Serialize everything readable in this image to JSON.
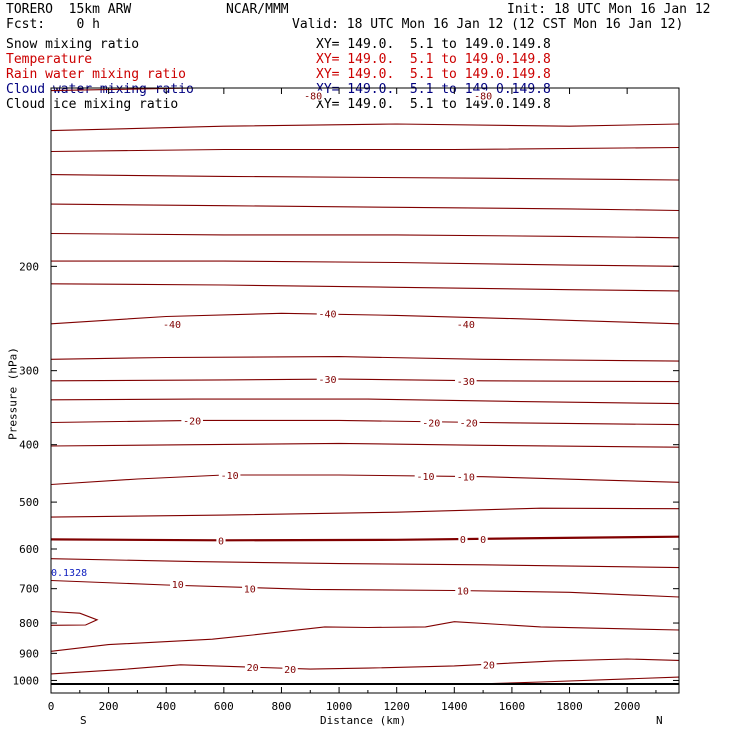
{
  "header": {
    "model": "TORERO  15km ARW",
    "center": "NCAR/MMM",
    "init": "Init: 18 UTC Mon 16 Jan 12",
    "fcst": "Fcst:    0 h",
    "valid": "Valid: 18 UTC Mon 16 Jan 12 (12 CST Mon 16 Jan 12)"
  },
  "fields": [
    {
      "name": "Snow mixing ratio",
      "xy": "XY= 149.0.  5.1 to 149.0.149.8",
      "color": "#000000"
    },
    {
      "name": "Temperature",
      "xy": "XY= 149.0.  5.1 to 149.0.149.8",
      "color": "#cc0000"
    },
    {
      "name": "Rain water mixing ratio",
      "xy": "XY= 149.0.  5.1 to 149.0.149.8",
      "color": "#cc0000"
    },
    {
      "name": "Cloud water mixing ratio",
      "xy": "XY= 149.0.  5.1 to 149.0.149.8",
      "color": "#000080"
    },
    {
      "name": "Cloud ice mixing ratio",
      "xy": "XY= 149.0.  5.1 to 149.0.149.8",
      "color": "#000000"
    }
  ],
  "chart_data": {
    "type": "line",
    "xlabel": "Distance (km)",
    "ylabel": "Pressure (hPa)",
    "xlim": [
      0,
      2180
    ],
    "ylim": [
      1050,
      100
    ],
    "x_ticks": [
      0,
      200,
      400,
      600,
      800,
      1000,
      1200,
      1400,
      1600,
      1800,
      2000
    ],
    "y_ticks": [
      200,
      300,
      400,
      500,
      600,
      700,
      800,
      900,
      1000
    ],
    "x_tick_labels": [
      "0",
      "200",
      "400",
      "600",
      "800",
      "1000",
      "1200",
      "1400",
      "1600",
      "1800",
      "2000"
    ],
    "y_tick_labels": [
      "200",
      "300",
      "400",
      "500",
      "600",
      "700",
      "800",
      "900",
      "1000"
    ],
    "left_end_label": "S",
    "right_end_label": "N",
    "cloud_water_annotation": "0.1328",
    "surface_pressure_hpa": 1014,
    "contour_color": "#800000",
    "isotherms": [
      {
        "t": -80,
        "points": [
          [
            0,
            101
          ],
          [
            500,
            100
          ],
          [
            1000,
            99
          ],
          [
            1500,
            100
          ],
          [
            2180,
            99
          ]
        ]
      },
      {
        "t": -75,
        "points": [
          [
            0,
            118
          ],
          [
            600,
            116
          ],
          [
            1200,
            115
          ],
          [
            1800,
            116
          ],
          [
            2180,
            115
          ]
        ]
      },
      {
        "t": -70,
        "points": [
          [
            0,
            128
          ],
          [
            600,
            127
          ],
          [
            1400,
            127
          ],
          [
            2180,
            126
          ]
        ]
      },
      {
        "t": -65,
        "points": [
          [
            0,
            140
          ],
          [
            600,
            141
          ],
          [
            1500,
            142
          ],
          [
            2180,
            143
          ]
        ]
      },
      {
        "t": -60,
        "points": [
          [
            0,
            157
          ],
          [
            600,
            158
          ],
          [
            1200,
            159
          ],
          [
            1800,
            160
          ],
          [
            2180,
            161
          ]
        ]
      },
      {
        "t": -55,
        "points": [
          [
            0,
            176
          ],
          [
            600,
            177
          ],
          [
            1200,
            177
          ],
          [
            1800,
            178
          ],
          [
            2180,
            179
          ]
        ]
      },
      {
        "t": -50,
        "points": [
          [
            0,
            196
          ],
          [
            600,
            196
          ],
          [
            1200,
            197
          ],
          [
            1800,
            199
          ],
          [
            2180,
            200
          ]
        ]
      },
      {
        "t": -45,
        "points": [
          [
            0,
            214
          ],
          [
            600,
            215
          ],
          [
            1200,
            217
          ],
          [
            1800,
            219
          ],
          [
            2180,
            220
          ]
        ]
      },
      {
        "t": -40,
        "points": [
          [
            0,
            250
          ],
          [
            400,
            243
          ],
          [
            800,
            240
          ],
          [
            1200,
            242
          ],
          [
            1600,
            245
          ],
          [
            2180,
            250
          ]
        ]
      },
      {
        "t": -35,
        "points": [
          [
            0,
            287
          ],
          [
            400,
            285
          ],
          [
            1000,
            284
          ],
          [
            1500,
            287
          ],
          [
            2180,
            289
          ]
        ]
      },
      {
        "t": -30,
        "points": [
          [
            0,
            312
          ],
          [
            600,
            311
          ],
          [
            1000,
            310
          ],
          [
            1500,
            312
          ],
          [
            2180,
            313
          ]
        ]
      },
      {
        "t": -25,
        "points": [
          [
            0,
            336
          ],
          [
            500,
            335
          ],
          [
            1100,
            335
          ],
          [
            1600,
            338
          ],
          [
            2180,
            341
          ]
        ]
      },
      {
        "t": -20,
        "points": [
          [
            0,
            367
          ],
          [
            500,
            364
          ],
          [
            1000,
            364
          ],
          [
            1500,
            367
          ],
          [
            2180,
            370
          ]
        ]
      },
      {
        "t": -15,
        "points": [
          [
            0,
            402
          ],
          [
            500,
            400
          ],
          [
            1000,
            398
          ],
          [
            1500,
            401
          ],
          [
            2180,
            404
          ]
        ]
      },
      {
        "t": -10,
        "points": [
          [
            0,
            467
          ],
          [
            300,
            457
          ],
          [
            600,
            450
          ],
          [
            1000,
            450
          ],
          [
            1500,
            453
          ],
          [
            2180,
            463
          ]
        ]
      },
      {
        "t": -5,
        "points": [
          [
            0,
            530
          ],
          [
            600,
            526
          ],
          [
            1200,
            520
          ],
          [
            1700,
            512
          ],
          [
            2180,
            513
          ]
        ]
      },
      {
        "t": 0,
        "bold": true,
        "points": [
          [
            0,
            578
          ],
          [
            600,
            580
          ],
          [
            1200,
            579
          ],
          [
            1700,
            575
          ],
          [
            2180,
            572
          ]
        ]
      },
      {
        "t": 5,
        "points": [
          [
            0,
            623
          ],
          [
            500,
            630
          ],
          [
            1000,
            635
          ],
          [
            1500,
            638
          ],
          [
            2180,
            645
          ]
        ]
      },
      {
        "t": 10,
        "points": [
          [
            0,
            678
          ],
          [
            400,
            690
          ],
          [
            900,
            702
          ],
          [
            1400,
            705
          ],
          [
            1800,
            710
          ],
          [
            2180,
            723
          ]
        ]
      },
      {
        "t": 15,
        "points": [
          [
            0,
            765
          ],
          [
            100,
            770
          ],
          [
            160,
            790
          ],
          [
            120,
            806
          ],
          [
            0,
            807
          ]
        ]
      },
      {
        "t": 15,
        "points": [
          [
            0,
            893
          ],
          [
            200,
            870
          ],
          [
            560,
            852
          ],
          [
            700,
            838
          ],
          [
            950,
            812
          ],
          [
            1100,
            814
          ],
          [
            1300,
            812
          ],
          [
            1400,
            796
          ],
          [
            1700,
            812
          ],
          [
            2180,
            822
          ]
        ]
      },
      {
        "t": 20,
        "points": [
          [
            0,
            975
          ],
          [
            250,
            958
          ],
          [
            450,
            941
          ],
          [
            700,
            950
          ],
          [
            900,
            957
          ],
          [
            1100,
            953
          ],
          [
            1400,
            945
          ],
          [
            1750,
            927
          ],
          [
            2000,
            920
          ],
          [
            2180,
            925
          ]
        ]
      },
      {
        "t": 25,
        "points": [
          [
            1500,
            1013
          ],
          [
            1700,
            1006
          ],
          [
            2000,
            994
          ],
          [
            2180,
            987
          ]
        ]
      }
    ],
    "contour_labels": [
      {
        "text": "-80",
        "x": 910,
        "p": 103
      },
      {
        "text": "-80",
        "x": 1500,
        "p": 103
      },
      {
        "text": "-40",
        "x": 420,
        "p": 250
      },
      {
        "text": "-40",
        "x": 960,
        "p": 240
      },
      {
        "text": "-40",
        "x": 1440,
        "p": 250
      },
      {
        "text": "-30",
        "x": 960,
        "p": 310
      },
      {
        "text": "-30",
        "x": 1440,
        "p": 312
      },
      {
        "text": "-20",
        "x": 490,
        "p": 364
      },
      {
        "text": "-20",
        "x": 1320,
        "p": 367
      },
      {
        "text": "-20",
        "x": 1450,
        "p": 367
      },
      {
        "text": "-10",
        "x": 620,
        "p": 450
      },
      {
        "text": "-10",
        "x": 1300,
        "p": 452
      },
      {
        "text": "-10",
        "x": 1440,
        "p": 453
      },
      {
        "text": "0",
        "x": 590,
        "p": 580
      },
      {
        "text": "0",
        "x": 1430,
        "p": 577
      },
      {
        "text": "0",
        "x": 1500,
        "p": 577
      },
      {
        "text": "10",
        "x": 440,
        "p": 687
      },
      {
        "text": "10",
        "x": 690,
        "p": 700
      },
      {
        "text": "10",
        "x": 1430,
        "p": 705
      },
      {
        "text": "20",
        "x": 700,
        "p": 950
      },
      {
        "text": "20",
        "x": 830,
        "p": 956
      },
      {
        "text": "20",
        "x": 1520,
        "p": 940
      }
    ]
  }
}
